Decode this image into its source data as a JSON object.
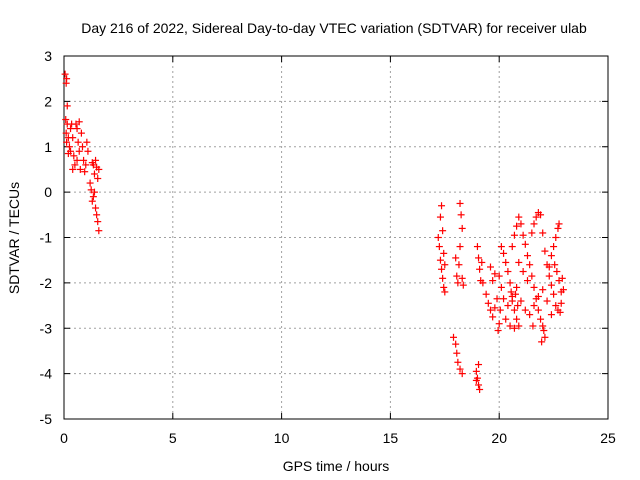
{
  "chart_data": {
    "type": "scatter",
    "title": "Day 216 of 2022, Sidereal Day-to-day VTEC variation (SDTVAR) for receiver ulab",
    "xlabel": "GPS time / hours",
    "ylabel": "SDTVAR / TECUs",
    "xlim": [
      0,
      25
    ],
    "ylim": [
      -5,
      3
    ],
    "xticks": [
      0,
      5,
      10,
      15,
      20,
      25
    ],
    "yticks": [
      -5,
      -4,
      -3,
      -2,
      -1,
      0,
      1,
      2,
      3
    ],
    "grid": true,
    "marker": "+",
    "marker_color": "#ff0000",
    "series": [
      {
        "name": "SDTVAR",
        "points": [
          [
            0.05,
            2.6
          ],
          [
            0.1,
            2.4
          ],
          [
            0.12,
            2.5
          ],
          [
            0.15,
            1.9
          ],
          [
            0.08,
            1.6
          ],
          [
            0.1,
            1.3
          ],
          [
            0.12,
            1.1
          ],
          [
            0.15,
            1.5
          ],
          [
            0.2,
            1.2
          ],
          [
            0.25,
            1.0
          ],
          [
            0.3,
            1.4
          ],
          [
            0.35,
            1.5
          ],
          [
            0.4,
            1.2
          ],
          [
            0.45,
            0.8
          ],
          [
            0.5,
            0.6
          ],
          [
            0.55,
            1.5
          ],
          [
            0.6,
            1.4
          ],
          [
            0.65,
            1.1
          ],
          [
            0.7,
            0.9
          ],
          [
            0.75,
            0.5
          ],
          [
            0.8,
            1.3
          ],
          [
            0.85,
            1.0
          ],
          [
            0.9,
            0.7
          ],
          [
            0.95,
            0.45
          ],
          [
            1.0,
            0.6
          ],
          [
            1.05,
            1.1
          ],
          [
            1.1,
            0.9
          ],
          [
            0.3,
            0.9
          ],
          [
            0.4,
            0.5
          ],
          [
            0.2,
            0.85
          ],
          [
            0.6,
            0.7
          ],
          [
            0.7,
            1.55
          ],
          [
            1.2,
            0.2
          ],
          [
            1.25,
            0.05
          ],
          [
            1.3,
            -0.2
          ],
          [
            1.35,
            -0.1
          ],
          [
            1.4,
            0.4
          ],
          [
            1.45,
            0.7
          ],
          [
            1.5,
            0.55
          ],
          [
            1.55,
            0.3
          ],
          [
            1.5,
            -0.5
          ],
          [
            1.55,
            -0.65
          ],
          [
            1.6,
            -0.85
          ],
          [
            1.45,
            -0.35
          ],
          [
            1.35,
            0.6
          ],
          [
            1.6,
            0.5
          ],
          [
            1.4,
            0.0
          ],
          [
            1.3,
            0.65
          ],
          [
            17.2,
            -1.0
          ],
          [
            17.25,
            -1.2
          ],
          [
            17.3,
            -1.5
          ],
          [
            17.35,
            -1.7
          ],
          [
            17.4,
            -1.9
          ],
          [
            17.45,
            -2.1
          ],
          [
            17.5,
            -2.2
          ],
          [
            17.3,
            -0.55
          ],
          [
            17.35,
            -0.3
          ],
          [
            17.4,
            -0.85
          ],
          [
            17.45,
            -1.35
          ],
          [
            17.5,
            -1.6
          ],
          [
            18.0,
            -1.45
          ],
          [
            18.05,
            -1.85
          ],
          [
            18.1,
            -2.0
          ],
          [
            18.15,
            -1.6
          ],
          [
            18.2,
            -1.2
          ],
          [
            18.3,
            -0.8
          ],
          [
            18.2,
            -0.25
          ],
          [
            18.25,
            -0.5
          ],
          [
            18.3,
            -1.9
          ],
          [
            18.35,
            -2.05
          ],
          [
            17.9,
            -3.2
          ],
          [
            18.0,
            -3.35
          ],
          [
            18.05,
            -3.55
          ],
          [
            18.1,
            -3.75
          ],
          [
            18.2,
            -3.9
          ],
          [
            18.3,
            -4.0
          ],
          [
            18.95,
            -3.95
          ],
          [
            19.0,
            -4.1
          ],
          [
            19.05,
            -4.25
          ],
          [
            19.1,
            -4.35
          ],
          [
            18.95,
            -4.15
          ],
          [
            19.05,
            -3.8
          ],
          [
            19.0,
            -1.2
          ],
          [
            19.05,
            -1.45
          ],
          [
            19.1,
            -1.7
          ],
          [
            19.15,
            -1.95
          ],
          [
            19.2,
            -1.55
          ],
          [
            19.25,
            -2.0
          ],
          [
            19.4,
            -2.25
          ],
          [
            19.5,
            -2.45
          ],
          [
            19.6,
            -2.6
          ],
          [
            19.7,
            -2.75
          ],
          [
            19.8,
            -2.55
          ],
          [
            19.9,
            -2.35
          ],
          [
            20.0,
            -2.9
          ],
          [
            20.05,
            -2.6
          ],
          [
            19.95,
            -3.05
          ],
          [
            19.8,
            -1.8
          ],
          [
            19.7,
            -1.95
          ],
          [
            19.6,
            -1.65
          ],
          [
            20.1,
            -1.2
          ],
          [
            20.2,
            -1.35
          ],
          [
            20.3,
            -1.55
          ],
          [
            20.4,
            -1.75
          ],
          [
            20.5,
            -2.0
          ],
          [
            20.55,
            -2.2
          ],
          [
            20.6,
            -2.4
          ],
          [
            20.7,
            -2.6
          ],
          [
            20.8,
            -2.8
          ],
          [
            20.9,
            -2.95
          ],
          [
            20.85,
            -2.5
          ],
          [
            20.75,
            -2.25
          ],
          [
            20.6,
            -1.2
          ],
          [
            20.7,
            -0.95
          ],
          [
            20.8,
            -0.75
          ],
          [
            20.9,
            -0.55
          ],
          [
            21.0,
            -0.7
          ],
          [
            21.1,
            -0.95
          ],
          [
            21.2,
            -1.15
          ],
          [
            21.3,
            -1.4
          ],
          [
            21.4,
            -1.6
          ],
          [
            21.5,
            -1.85
          ],
          [
            21.6,
            -2.1
          ],
          [
            21.7,
            -2.35
          ],
          [
            21.8,
            -2.6
          ],
          [
            21.9,
            -2.8
          ],
          [
            22.0,
            -2.95
          ],
          [
            22.1,
            -3.2
          ],
          [
            21.95,
            -3.3
          ],
          [
            22.05,
            -3.05
          ],
          [
            21.5,
            -0.9
          ],
          [
            21.6,
            -0.7
          ],
          [
            21.7,
            -0.55
          ],
          [
            21.8,
            -0.45
          ],
          [
            21.9,
            -0.5
          ],
          [
            22.0,
            -0.9
          ],
          [
            22.1,
            -1.3
          ],
          [
            22.2,
            -1.6
          ],
          [
            22.3,
            -1.85
          ],
          [
            22.4,
            -2.05
          ],
          [
            22.5,
            -2.25
          ],
          [
            22.6,
            -2.5
          ],
          [
            22.7,
            -2.6
          ],
          [
            22.8,
            -2.65
          ],
          [
            22.85,
            -2.2
          ],
          [
            22.75,
            -1.95
          ],
          [
            22.65,
            -1.75
          ],
          [
            22.55,
            -1.6
          ],
          [
            22.5,
            -1.2
          ],
          [
            22.6,
            -1.0
          ],
          [
            22.7,
            -0.8
          ],
          [
            22.75,
            -0.7
          ],
          [
            22.4,
            -1.4
          ],
          [
            22.3,
            -1.65
          ],
          [
            20.2,
            -2.35
          ],
          [
            20.4,
            -2.5
          ],
          [
            20.6,
            -2.3
          ],
          [
            20.8,
            -2.1
          ],
          [
            21.0,
            -2.4
          ],
          [
            21.2,
            -2.6
          ],
          [
            21.4,
            -2.7
          ],
          [
            21.6,
            -2.5
          ],
          [
            21.8,
            -2.3
          ],
          [
            22.0,
            -2.15
          ],
          [
            22.2,
            -2.4
          ],
          [
            22.4,
            -2.7
          ],
          [
            21.3,
            -1.95
          ],
          [
            21.1,
            -1.75
          ],
          [
            20.9,
            -1.55
          ],
          [
            22.9,
            -1.9
          ],
          [
            22.95,
            -2.15
          ],
          [
            22.85,
            -2.45
          ],
          [
            20.0,
            -1.85
          ],
          [
            20.1,
            -2.1
          ],
          [
            20.3,
            -2.8
          ],
          [
            20.5,
            -2.95
          ],
          [
            20.7,
            -3.0
          ],
          [
            21.55,
            -2.95
          ]
        ]
      }
    ]
  }
}
